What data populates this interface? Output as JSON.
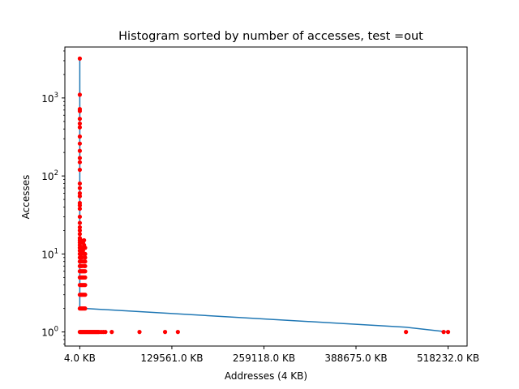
{
  "chart_data": {
    "type": "line",
    "title": "Histogram sorted by number of accesses, test =out",
    "xlabel": "Addresses (4 KB)",
    "ylabel": "Accesses",
    "xlim": [
      -21000,
      545000
    ],
    "ylim_log": [
      0.66,
      4500
    ],
    "y_scale": "log",
    "grid": false,
    "x_ticks": [
      {
        "value": 4,
        "label": "4.0 KB"
      },
      {
        "value": 129561,
        "label": "129561.0 KB"
      },
      {
        "value": 259118,
        "label": "259118.0 KB"
      },
      {
        "value": 388675,
        "label": "388675.0 KB"
      },
      {
        "value": 518232,
        "label": "518232.0 KB"
      }
    ],
    "y_ticks": [
      {
        "value": 1,
        "base": "10",
        "exp": "0"
      },
      {
        "value": 10,
        "base": "10",
        "exp": "1"
      },
      {
        "value": 100,
        "base": "10",
        "exp": "2"
      },
      {
        "value": 1000,
        "base": "10",
        "exp": "3"
      }
    ],
    "series": [
      {
        "color": "#1f77b4",
        "points": [
          {
            "x": 4,
            "y": 3200
          },
          {
            "x": 4,
            "y": 2
          },
          {
            "x": 8000,
            "y": 2
          },
          {
            "x": 459000,
            "y": 1.15
          },
          {
            "x": 518232,
            "y": 1
          }
        ]
      }
    ],
    "scatter": {
      "color": "#ff0000",
      "points": [
        [
          4,
          3200
        ],
        [
          4,
          1100
        ],
        [
          4,
          720
        ],
        [
          4,
          680
        ],
        [
          4,
          540
        ],
        [
          4,
          470
        ],
        [
          4,
          420
        ],
        [
          4,
          320
        ],
        [
          4,
          260
        ],
        [
          4,
          210
        ],
        [
          4,
          170
        ],
        [
          4,
          150
        ],
        [
          4,
          120
        ],
        [
          4,
          80
        ],
        [
          4,
          70
        ],
        [
          4,
          60
        ],
        [
          4,
          55
        ],
        [
          4,
          45
        ],
        [
          4,
          42
        ],
        [
          4,
          38
        ],
        [
          4,
          30
        ],
        [
          4,
          25
        ],
        [
          4,
          22
        ],
        [
          4,
          20
        ],
        [
          4,
          18
        ],
        [
          4,
          16
        ],
        [
          4,
          15
        ],
        [
          4,
          14
        ],
        [
          4,
          13
        ],
        [
          4,
          12
        ],
        [
          4,
          11
        ],
        [
          4,
          10
        ],
        [
          4,
          9
        ],
        [
          4,
          8
        ],
        [
          4,
          7
        ],
        [
          4,
          6
        ],
        [
          4,
          5
        ],
        [
          4,
          4
        ],
        [
          4,
          3
        ],
        [
          4,
          2
        ],
        [
          4,
          1
        ],
        [
          1500,
          15
        ],
        [
          1500,
          12
        ],
        [
          1500,
          10
        ],
        [
          1500,
          9
        ],
        [
          1500,
          8
        ],
        [
          1500,
          7
        ],
        [
          1500,
          6
        ],
        [
          1500,
          5
        ],
        [
          1500,
          4
        ],
        [
          1500,
          3
        ],
        [
          1500,
          2
        ],
        [
          1500,
          1
        ],
        [
          3000,
          12
        ],
        [
          3000,
          9
        ],
        [
          3000,
          7
        ],
        [
          3000,
          6
        ],
        [
          3000,
          5
        ],
        [
          3000,
          4
        ],
        [
          3000,
          3
        ],
        [
          3000,
          2
        ],
        [
          3000,
          1
        ],
        [
          4500,
          14
        ],
        [
          4500,
          11
        ],
        [
          4500,
          8
        ],
        [
          4500,
          6
        ],
        [
          4500,
          5
        ],
        [
          4500,
          4
        ],
        [
          4500,
          3
        ],
        [
          4500,
          2
        ],
        [
          4500,
          1
        ],
        [
          6000,
          15
        ],
        [
          6000,
          13
        ],
        [
          6000,
          10
        ],
        [
          6000,
          8
        ],
        [
          6000,
          7
        ],
        [
          6000,
          6
        ],
        [
          6000,
          5
        ],
        [
          6000,
          4
        ],
        [
          6000,
          3
        ],
        [
          6000,
          2
        ],
        [
          6000,
          1
        ],
        [
          7500,
          12
        ],
        [
          7500,
          10
        ],
        [
          7500,
          9
        ],
        [
          7500,
          8
        ],
        [
          7500,
          7
        ],
        [
          7500,
          6
        ],
        [
          7500,
          5
        ],
        [
          7500,
          4
        ],
        [
          7500,
          3
        ],
        [
          7500,
          2
        ],
        [
          7500,
          1
        ],
        [
          9000,
          1
        ],
        [
          10500,
          1
        ],
        [
          12000,
          1
        ],
        [
          13500,
          1
        ],
        [
          15000,
          1
        ],
        [
          16500,
          1
        ],
        [
          18000,
          1
        ],
        [
          19500,
          1
        ],
        [
          21000,
          1
        ],
        [
          22500,
          1
        ],
        [
          24000,
          1
        ],
        [
          25500,
          1
        ],
        [
          27000,
          1
        ],
        [
          30000,
          1
        ],
        [
          33000,
          1
        ],
        [
          36000,
          1
        ],
        [
          45000,
          1
        ],
        [
          84000,
          1
        ],
        [
          120000,
          1
        ],
        [
          138000,
          1
        ],
        [
          459000,
          1
        ],
        [
          512000,
          1
        ],
        [
          518232,
          1
        ]
      ]
    }
  }
}
